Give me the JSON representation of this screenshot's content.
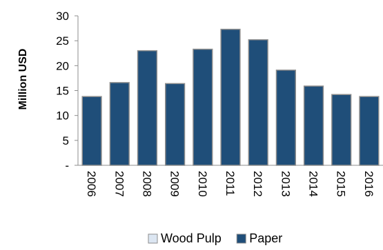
{
  "chart_data": {
    "type": "bar",
    "ylabel": "Million USD",
    "xlabel": "",
    "title": "",
    "categories": [
      "2006",
      "2007",
      "2008",
      "2009",
      "2010",
      "2011",
      "2012",
      "2013",
      "2014",
      "2015",
      "2016"
    ],
    "series": [
      {
        "name": "Wood Pulp",
        "values": [
          0,
          0,
          0,
          0,
          0,
          0,
          0,
          0,
          0,
          0,
          0
        ],
        "color": "#dce6f2"
      },
      {
        "name": "Paper",
        "values": [
          13.8,
          16.6,
          23.0,
          16.4,
          23.3,
          27.3,
          25.2,
          19.1,
          15.9,
          14.2,
          13.8
        ],
        "color": "#1f4e79"
      }
    ],
    "ylim": [
      0,
      30
    ],
    "yticks": [
      {
        "value": 0,
        "label": "-"
      },
      {
        "value": 5,
        "label": "5"
      },
      {
        "value": 10,
        "label": "10"
      },
      {
        "value": 15,
        "label": "15"
      },
      {
        "value": 20,
        "label": "20"
      },
      {
        "value": 25,
        "label": "25"
      },
      {
        "value": 30,
        "label": "30"
      }
    ],
    "grid": false,
    "stacked": true,
    "legend_position": "bottom"
  }
}
